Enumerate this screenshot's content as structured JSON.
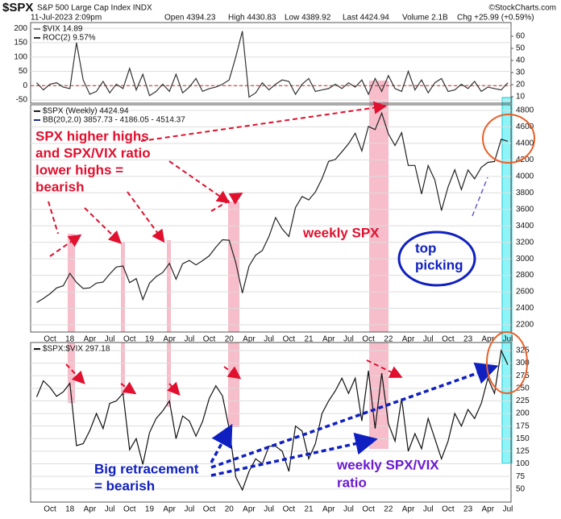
{
  "header": {
    "symbol": "$SPX",
    "name": "S&P 500 Large Cap Index INDX",
    "source": "©StockCharts.com",
    "date": "11-Jul-2023 2:09pm",
    "open": "Open 4394.23",
    "high": "High 4430.83",
    "low": "Low 4389.92",
    "last": "Last 4424.94",
    "volume": "Volume 2.1B",
    "change": "Chg +25.99 (+0.59%)"
  },
  "chart_data": [
    {
      "type": "line",
      "y_axis_side": "left",
      "overlay_label": "$VIX 14.89",
      "series": [
        {
          "name": "ROC(2) 9.57%",
          "color": "#333333",
          "values": [
            10,
            -15,
            5,
            10,
            -5,
            -10,
            150,
            20,
            -30,
            -20,
            15,
            -25,
            5,
            -10,
            60,
            -15,
            40,
            -35,
            -20,
            5,
            -20,
            40,
            -25,
            -5,
            25,
            -20,
            -10,
            -5,
            5,
            20,
            100,
            190,
            -40,
            -25,
            10,
            -15,
            5,
            20,
            15,
            -30,
            5,
            25,
            -20,
            -15,
            -10,
            5,
            -10,
            10,
            -5,
            20,
            -30,
            25,
            -20,
            35,
            -10,
            -20,
            50,
            -15,
            20,
            -25,
            10,
            25,
            -20,
            -15,
            5,
            -10,
            15,
            -20,
            -5,
            -10,
            -15,
            10
          ]
        }
      ],
      "ylim": [
        -61,
        220
      ],
      "yticks": [
        -50,
        0,
        50,
        100,
        150,
        200
      ],
      "y2lim": [
        4.7,
        71.3
      ],
      "y2ticks": [
        10,
        20,
        30,
        40,
        50,
        60
      ],
      "zero_line": 0,
      "zero_line_color": "#cc2222",
      "grid": true
    },
    {
      "type": "line",
      "y_axis_side": "right",
      "bb_label": "BB(20,2.0) 3857.73 - 4186.05 - 4514.37",
      "categories": [
        null,
        null,
        "Oct",
        null,
        null,
        "18",
        null,
        null,
        "Apr",
        null,
        null,
        "Jul",
        null,
        null,
        "Oct",
        null,
        null,
        "19",
        null,
        null,
        "Apr",
        null,
        null,
        "Jul",
        null,
        null,
        "Oct",
        null,
        null,
        "20",
        null,
        null,
        "Apr",
        null,
        null,
        "Jul",
        null,
        null,
        "Oct",
        null,
        null,
        "21",
        null,
        null,
        "Apr",
        null,
        null,
        "Jul",
        null,
        null,
        "Oct",
        null,
        null,
        "22",
        null,
        null,
        "Apr",
        null,
        null,
        "Jul",
        null,
        null,
        "Oct",
        null,
        null,
        "23",
        null,
        null,
        "Apr",
        null,
        null,
        "Jul"
      ],
      "series": [
        {
          "name": "$SPX (Weekly) 4424.94",
          "color": "#222222",
          "values": [
            2470,
            2519,
            2575,
            2647,
            2673,
            2823,
            2713,
            2640,
            2648,
            2705,
            2718,
            2816,
            2901,
            2913,
            2711,
            2760,
            2506,
            2704,
            2784,
            2834,
            2945,
            2752,
            2941,
            2980,
            2926,
            2977,
            3037,
            3141,
            3231,
            3225,
            2954,
            2585,
            2912,
            3044,
            3100,
            3271,
            3500,
            3363,
            3270,
            3622,
            3756,
            3714,
            3811,
            3973,
            4181,
            4204,
            4298,
            4395,
            4523,
            4308,
            4605,
            4567,
            4766,
            4516,
            4374,
            4530,
            4132,
            4132,
            3785,
            4130,
            3955,
            3586,
            3872,
            4080,
            3840,
            4077,
            3970,
            4109,
            4169,
            4180,
            4450,
            4425
          ]
        }
      ],
      "ylim": [
        2112,
        4868
      ],
      "yticks": [
        2200,
        2400,
        2600,
        2800,
        3000,
        3200,
        3400,
        3600,
        3800,
        4000,
        4200,
        4400,
        4600,
        4800
      ],
      "grid": true,
      "annotations": [
        {
          "lines": [
            "SPX higher highs",
            "and SPX/VIX ratio",
            "lower highs =",
            "bearish"
          ],
          "color": "#e0102e"
        },
        {
          "lines": [
            "weekly SPX"
          ],
          "color": "#e0102e"
        },
        {
          "lines": [
            "top",
            "picking"
          ],
          "color": "#1020c0"
        }
      ]
    },
    {
      "type": "line",
      "y_axis_side": "right",
      "categories": [
        null,
        null,
        "Oct",
        null,
        null,
        "18",
        null,
        null,
        "Apr",
        null,
        null,
        "Jul",
        null,
        null,
        "Oct",
        null,
        null,
        "19",
        null,
        null,
        "Apr",
        null,
        null,
        "Jul",
        null,
        null,
        "Oct",
        null,
        null,
        "20",
        null,
        null,
        "Apr",
        null,
        null,
        "Jul",
        null,
        null,
        "Oct",
        null,
        null,
        "21",
        null,
        null,
        "Apr",
        null,
        null,
        "Jul",
        null,
        null,
        "Oct",
        null,
        null,
        "22",
        null,
        null,
        "Apr",
        null,
        null,
        "Jul",
        null,
        null,
        "Oct",
        null,
        null,
        "23",
        null,
        null,
        "Apr",
        null,
        null,
        "Jul"
      ],
      "series": [
        {
          "name": "$SPX:$VIX 297.18",
          "color": "#111111",
          "values": [
            233,
            265,
            252,
            234,
            243,
            260,
            136,
            140,
            166,
            200,
            170,
            220,
            225,
            240,
            128,
            150,
            99,
            162,
            190,
            205,
            225,
            150,
            195,
            185,
            155,
            184,
            230,
            255,
            235,
            170,
            74,
            48,
            85,
            110,
            100,
            135,
            135,
            125,
            85,
            175,
            165,
            110,
            140,
            200,
            225,
            245,
            270,
            240,
            270,
            185,
            285,
            170,
            280,
            180,
            145,
            230,
            125,
            160,
            130,
            190,
            150,
            110,
            145,
            200,
            175,
            208,
            190,
            220,
            270,
            240,
            325,
            297
          ]
        }
      ],
      "ylim": [
        24,
        341
      ],
      "yticks": [
        50,
        75,
        100,
        125,
        150,
        175,
        200,
        225,
        250,
        275,
        300,
        325
      ],
      "grid": true,
      "annotations": [
        {
          "lines": [
            "Big retracement",
            "= bearish"
          ],
          "color": "#1020c0"
        },
        {
          "lines": [
            "weekly SPX/VIX",
            "ratio"
          ],
          "color": "#6a1ad0"
        }
      ]
    }
  ]
}
